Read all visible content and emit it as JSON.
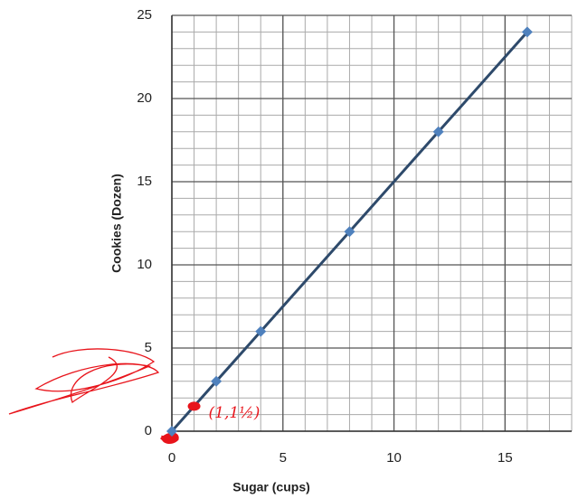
{
  "chart_data": {
    "type": "line",
    "x_label": "Sugar (cups)",
    "y_label": "Cookies (Dozen)",
    "series": [
      {
        "color": "#2e4a6b",
        "marker_color": "#4f81bd",
        "line": true,
        "x": [
          0,
          2,
          4,
          8,
          12,
          16
        ],
        "values": [
          0,
          3,
          6,
          12,
          18,
          24
        ]
      },
      {
        "color": "#e8141b",
        "marker_color": "#e8141b",
        "line": false,
        "x": [
          1
        ],
        "values": [
          1.5
        ]
      }
    ],
    "annotation": "(1,1½)",
    "xlim": [
      0,
      18
    ],
    "ylim": [
      0,
      25
    ],
    "xticks": [
      0,
      5,
      10,
      15
    ],
    "yticks": [
      0,
      5,
      10,
      15,
      20,
      25
    ],
    "grid": true,
    "minor_grid_step": 1
  }
}
